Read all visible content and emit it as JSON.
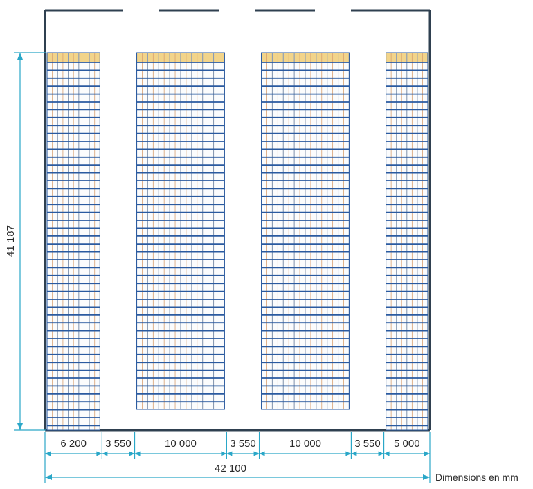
{
  "drawing": {
    "height_label": "41 187",
    "width_segments": [
      {
        "label": "6 200",
        "mm": 6200
      },
      {
        "label": "3 550",
        "mm": 3550
      },
      {
        "label": "10 000",
        "mm": 10000
      },
      {
        "label": "3 550",
        "mm": 3550
      },
      {
        "label": "10 000",
        "mm": 10000
      },
      {
        "label": "3 550",
        "mm": 3550
      },
      {
        "label": "5 000",
        "mm": 5000
      }
    ],
    "total_width_label": "42 100",
    "unit_note": "Dimensions en mm",
    "colors": {
      "wall": "#2f4050",
      "rack_beam": "#2a5aa0",
      "rack_upright": "#d8a070",
      "rack_top": "#f2d48a",
      "dimension_line": "#2aa7c8"
    }
  }
}
